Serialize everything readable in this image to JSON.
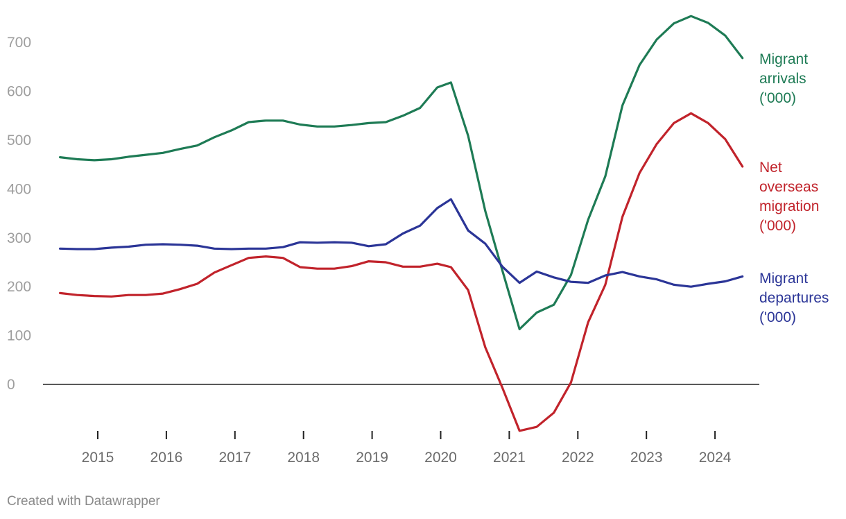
{
  "chart_data": {
    "type": "line",
    "title": "",
    "xlabel": "",
    "ylabel": "",
    "ylim": [
      -100,
      760
    ],
    "xlim": [
      2014.45,
      2024.6
    ],
    "yticks": [
      0,
      100,
      200,
      300,
      400,
      500,
      600,
      700
    ],
    "xticks": [
      2015,
      2016,
      2017,
      2018,
      2019,
      2020,
      2021,
      2022,
      2023,
      2024
    ],
    "grid": false,
    "legend": "direct labels at right end of lines",
    "series": [
      {
        "label": [
          "Migrant",
          "arrivals",
          "('000)"
        ],
        "color": "#1e7b55",
        "points": [
          [
            2014.45,
            465
          ],
          [
            2014.7,
            461
          ],
          [
            2014.95,
            459
          ],
          [
            2015.2,
            461
          ],
          [
            2015.45,
            466
          ],
          [
            2015.7,
            470
          ],
          [
            2015.95,
            474
          ],
          [
            2016.2,
            482
          ],
          [
            2016.45,
            489
          ],
          [
            2016.7,
            506
          ],
          [
            2016.95,
            520
          ],
          [
            2017.2,
            537
          ],
          [
            2017.45,
            540
          ],
          [
            2017.7,
            540
          ],
          [
            2017.95,
            532
          ],
          [
            2018.2,
            528
          ],
          [
            2018.45,
            528
          ],
          [
            2018.7,
            531
          ],
          [
            2018.95,
            535
          ],
          [
            2019.2,
            537
          ],
          [
            2019.45,
            550
          ],
          [
            2019.7,
            566
          ],
          [
            2019.95,
            608
          ],
          [
            2020.15,
            618
          ],
          [
            2020.4,
            509
          ],
          [
            2020.65,
            355
          ],
          [
            2020.9,
            233
          ],
          [
            2021.15,
            113
          ],
          [
            2021.4,
            147
          ],
          [
            2021.65,
            163
          ],
          [
            2021.9,
            224
          ],
          [
            2022.15,
            337
          ],
          [
            2022.4,
            426
          ],
          [
            2022.65,
            571
          ],
          [
            2022.9,
            654
          ],
          [
            2023.15,
            706
          ],
          [
            2023.4,
            739
          ],
          [
            2023.65,
            754
          ],
          [
            2023.9,
            740
          ],
          [
            2024.15,
            714
          ],
          [
            2024.4,
            668
          ]
        ]
      },
      {
        "label": [
          "Net",
          "overseas",
          "migration",
          "('000)"
        ],
        "color": "#c1232b",
        "points": [
          [
            2014.45,
            187
          ],
          [
            2014.7,
            183
          ],
          [
            2014.95,
            181
          ],
          [
            2015.2,
            180
          ],
          [
            2015.45,
            183
          ],
          [
            2015.7,
            183
          ],
          [
            2015.95,
            186
          ],
          [
            2016.2,
            195
          ],
          [
            2016.45,
            206
          ],
          [
            2016.7,
            229
          ],
          [
            2016.95,
            244
          ],
          [
            2017.2,
            259
          ],
          [
            2017.45,
            262
          ],
          [
            2017.7,
            259
          ],
          [
            2017.95,
            240
          ],
          [
            2018.2,
            237
          ],
          [
            2018.45,
            237
          ],
          [
            2018.7,
            242
          ],
          [
            2018.95,
            252
          ],
          [
            2019.2,
            250
          ],
          [
            2019.45,
            241
          ],
          [
            2019.7,
            241
          ],
          [
            2019.95,
            247
          ],
          [
            2020.15,
            240
          ],
          [
            2020.4,
            193
          ],
          [
            2020.65,
            76
          ],
          [
            2020.9,
            -7
          ],
          [
            2021.15,
            -95
          ],
          [
            2021.4,
            -87
          ],
          [
            2021.65,
            -58
          ],
          [
            2021.9,
            4
          ],
          [
            2022.15,
            127
          ],
          [
            2022.4,
            204
          ],
          [
            2022.65,
            343
          ],
          [
            2022.9,
            433
          ],
          [
            2023.15,
            492
          ],
          [
            2023.4,
            535
          ],
          [
            2023.65,
            555
          ],
          [
            2023.9,
            535
          ],
          [
            2024.15,
            502
          ],
          [
            2024.4,
            446
          ]
        ]
      },
      {
        "label": [
          "Migrant",
          "departures",
          "('000)"
        ],
        "color": "#2b3597",
        "points": [
          [
            2014.45,
            278
          ],
          [
            2014.7,
            277
          ],
          [
            2014.95,
            277
          ],
          [
            2015.2,
            280
          ],
          [
            2015.45,
            282
          ],
          [
            2015.7,
            286
          ],
          [
            2015.95,
            287
          ],
          [
            2016.2,
            286
          ],
          [
            2016.45,
            284
          ],
          [
            2016.7,
            278
          ],
          [
            2016.95,
            277
          ],
          [
            2017.2,
            278
          ],
          [
            2017.45,
            278
          ],
          [
            2017.7,
            281
          ],
          [
            2017.95,
            291
          ],
          [
            2018.2,
            290
          ],
          [
            2018.45,
            291
          ],
          [
            2018.7,
            290
          ],
          [
            2018.95,
            283
          ],
          [
            2019.2,
            287
          ],
          [
            2019.45,
            309
          ],
          [
            2019.7,
            325
          ],
          [
            2019.95,
            361
          ],
          [
            2020.15,
            379
          ],
          [
            2020.4,
            315
          ],
          [
            2020.65,
            288
          ],
          [
            2020.9,
            241
          ],
          [
            2021.15,
            208
          ],
          [
            2021.4,
            231
          ],
          [
            2021.65,
            219
          ],
          [
            2021.9,
            210
          ],
          [
            2022.15,
            208
          ],
          [
            2022.4,
            223
          ],
          [
            2022.65,
            230
          ],
          [
            2022.9,
            221
          ],
          [
            2023.15,
            215
          ],
          [
            2023.4,
            204
          ],
          [
            2023.65,
            200
          ],
          [
            2023.9,
            206
          ],
          [
            2024.15,
            211
          ],
          [
            2024.4,
            221
          ]
        ]
      }
    ]
  },
  "credit": "Created with Datawrapper"
}
